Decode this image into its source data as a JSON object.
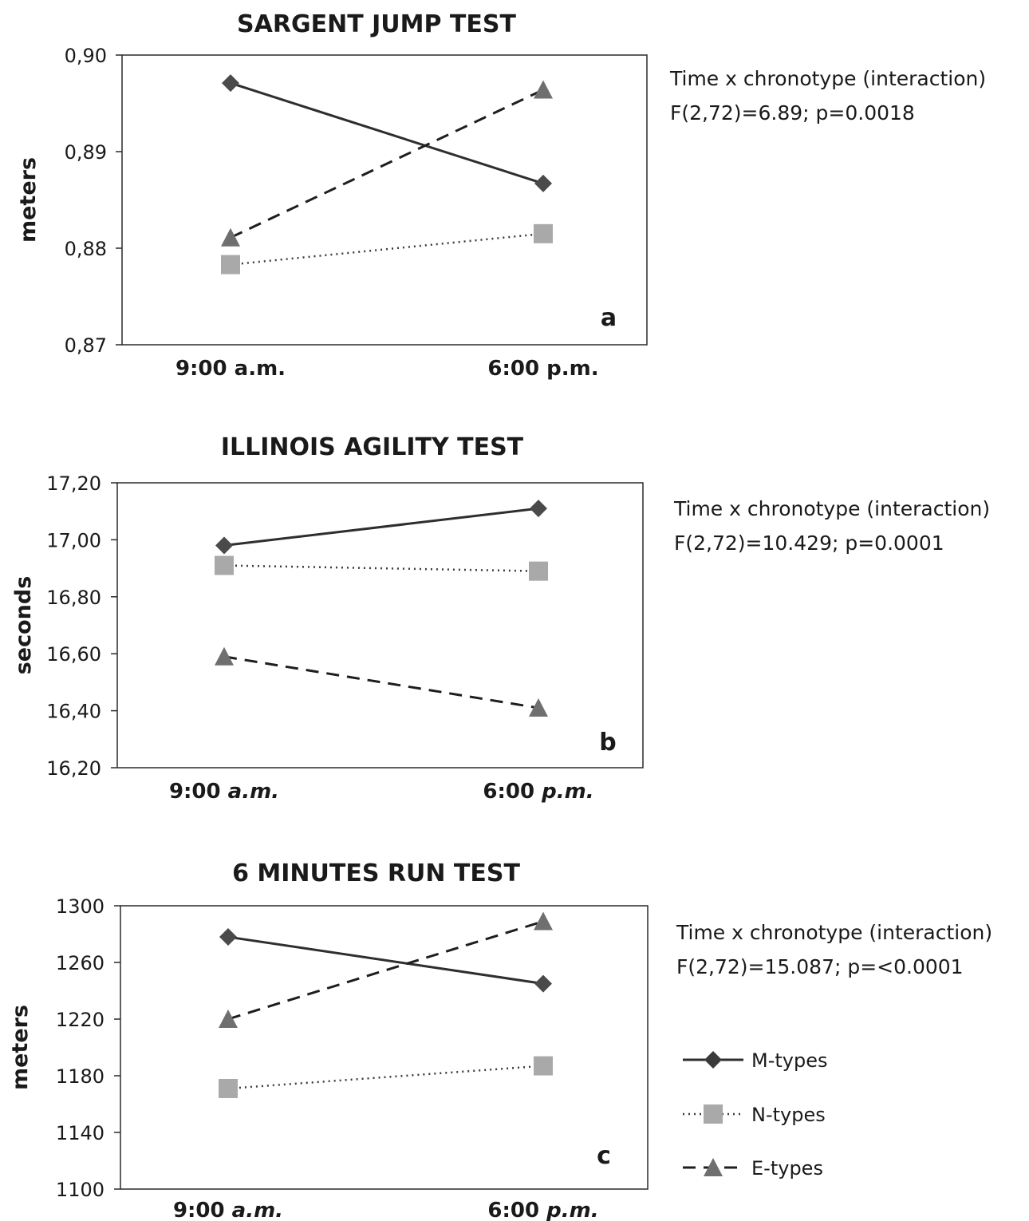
{
  "chart_data": [
    {
      "type": "line",
      "title": "SARGENT JUMP TEST",
      "ylabel": "meters",
      "panel_letter": "a",
      "categories": [
        "9:00 a.m.",
        "6:00 p.m."
      ],
      "ylim": [
        0.87,
        0.9
      ],
      "yticks": [
        "0,87",
        "0,88",
        "0,89",
        "0,90"
      ],
      "series": [
        {
          "name": "M-types",
          "values": [
            0.8971,
            0.8867
          ]
        },
        {
          "name": "N-types",
          "values": [
            0.8783,
            0.8815
          ]
        },
        {
          "name": "E-types",
          "values": [
            0.8811,
            0.8964
          ]
        }
      ],
      "annotation": [
        "Time x chronotype (interaction)",
        "F(2,72)=6.89; p=0.0018"
      ]
    },
    {
      "type": "line",
      "title": "ILLINOIS AGILITY TEST",
      "ylabel": "seconds",
      "panel_letter": "b",
      "categories": [
        "9:00 a.m.",
        "6:00 p.m."
      ],
      "ylim": [
        16.2,
        17.2
      ],
      "yticks": [
        "16,20",
        "16,40",
        "16,60",
        "16,80",
        "17,00",
        "17,20"
      ],
      "series": [
        {
          "name": "M-types",
          "values": [
            16.98,
            17.11
          ]
        },
        {
          "name": "N-types",
          "values": [
            16.91,
            16.89
          ]
        },
        {
          "name": "E-types",
          "values": [
            16.59,
            16.41
          ]
        }
      ],
      "annotation": [
        "Time x chronotype (interaction)",
        "F(2,72)=10.429; p=0.0001"
      ]
    },
    {
      "type": "line",
      "title": "6 MINUTES RUN TEST",
      "ylabel": "meters",
      "panel_letter": "c",
      "categories": [
        "9:00 a.m.",
        "6:00 p.m."
      ],
      "ylim": [
        1100,
        1300
      ],
      "yticks": [
        "1100",
        "1140",
        "1180",
        "1220",
        "1260",
        "1300"
      ],
      "series": [
        {
          "name": "M-types",
          "values": [
            1278,
            1245
          ]
        },
        {
          "name": "N-types",
          "values": [
            1171,
            1187
          ]
        },
        {
          "name": "E-types",
          "values": [
            1220,
            1289
          ]
        }
      ],
      "annotation": [
        "Time x chronotype (interaction)",
        "F(2,72)=15.087; p=<0.0001"
      ]
    }
  ],
  "legend": [
    {
      "name": "M-types",
      "color": "#3a3a3a",
      "marker": "diamond",
      "line": "solid"
    },
    {
      "name": "N-types",
      "color": "#a9a9a9",
      "marker": "square",
      "line": "dotted"
    },
    {
      "name": "E-types",
      "color": "#6f6f6f",
      "marker": "triangle",
      "line": "dashed"
    }
  ]
}
